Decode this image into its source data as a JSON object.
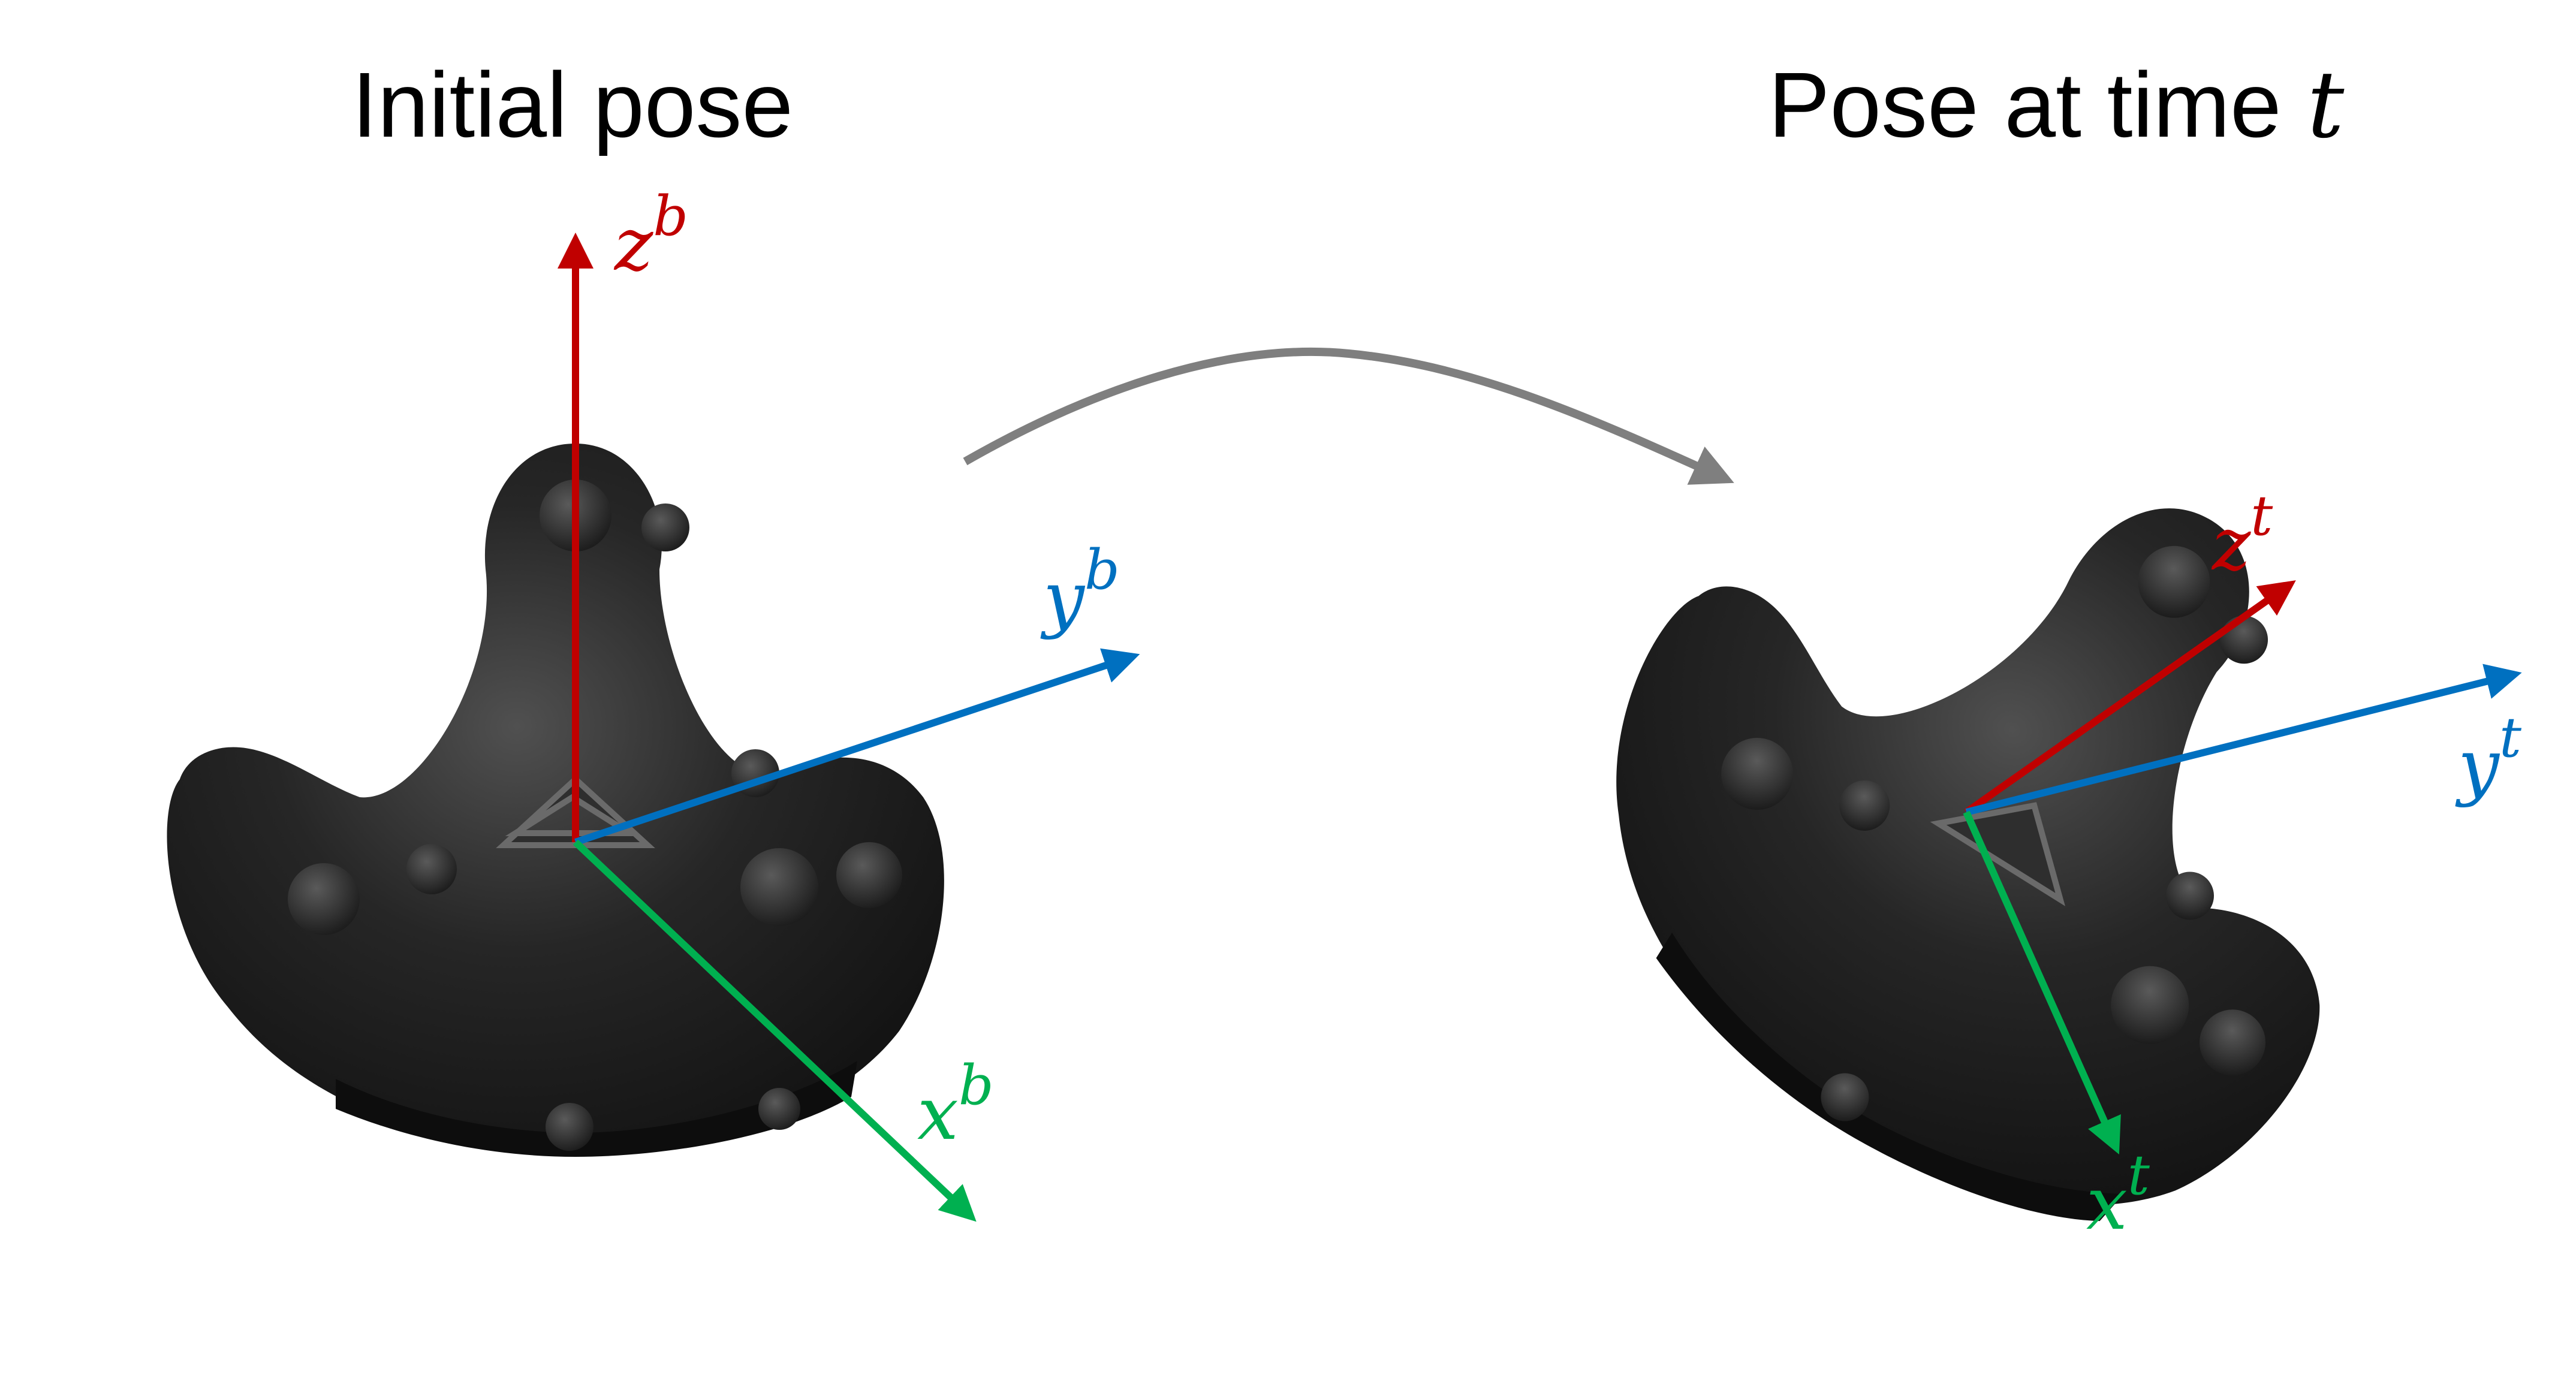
{
  "colors": {
    "z_axis": "#c00000",
    "y_axis": "#0070c0",
    "x_axis": "#00b050",
    "transition_arrow": "#7f7f7f",
    "tracker_body": "#1c1c1c",
    "tracker_highlight": "#4a4a4a"
  },
  "titles": {
    "initial": "Initial pose",
    "final_prefix": "Pose at time ",
    "final_var": "t"
  },
  "initial_frame": {
    "z_label": "z",
    "z_sup": "b",
    "y_label": "y",
    "y_sup": "b",
    "x_label": "x",
    "x_sup": "b"
  },
  "final_frame": {
    "z_label": "z",
    "z_sup": "t",
    "y_label": "y",
    "y_sup": "t",
    "x_label": "x",
    "x_sup": "t"
  },
  "icons": {
    "tracker_left": "vr-tracker-icon",
    "tracker_right": "vr-tracker-icon",
    "transition": "curved-arrow-icon"
  }
}
